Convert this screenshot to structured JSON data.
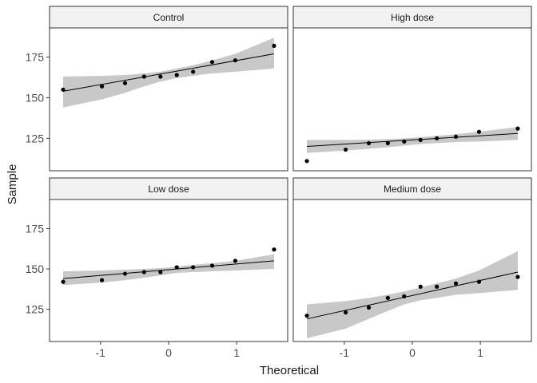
{
  "chart_data": {
    "type": "scatter",
    "subtype": "qq-plot faceted",
    "xlabel": "Theoretical",
    "ylabel": "Sample",
    "xlim": [
      -1.75,
      1.75
    ],
    "ylim": [
      105,
      193
    ],
    "x_ticks": [
      -1,
      0,
      1
    ],
    "y_ticks": [
      125,
      150,
      175
    ],
    "grid": false,
    "colors": {
      "points": "#000000",
      "line": "#000000",
      "band": "#c8c8c8",
      "strip_fill": "#f2f2f2",
      "panel_border": "#333333"
    },
    "panels": [
      {
        "name": "Control",
        "x": [
          -1.55,
          -0.98,
          -0.64,
          -0.36,
          -0.12,
          0.12,
          0.36,
          0.64,
          0.98,
          1.55
        ],
        "y": [
          155,
          157,
          159,
          163,
          163,
          164,
          166,
          172,
          173,
          182
        ],
        "line": [
          [
            -1.55,
            154
          ],
          [
            1.55,
            177
          ]
        ],
        "band_upper": [
          [
            -1.55,
            163
          ],
          [
            -0.98,
            163.5
          ],
          [
            -0.64,
            164
          ],
          [
            -0.36,
            165
          ],
          [
            -0.12,
            166
          ],
          [
            0.12,
            168
          ],
          [
            0.36,
            170
          ],
          [
            0.64,
            173
          ],
          [
            0.98,
            177
          ],
          [
            1.55,
            187
          ]
        ],
        "band_lower": [
          [
            -1.55,
            144
          ],
          [
            -0.98,
            149
          ],
          [
            -0.64,
            153
          ],
          [
            -0.36,
            157
          ],
          [
            -0.12,
            160
          ],
          [
            0.12,
            162
          ],
          [
            0.36,
            163.5
          ],
          [
            0.64,
            165
          ],
          [
            0.98,
            166
          ],
          [
            1.55,
            168
          ]
        ]
      },
      {
        "name": "High dose",
        "x": [
          -1.55,
          -0.98,
          -0.64,
          -0.36,
          -0.12,
          0.12,
          0.36,
          0.64,
          0.98,
          1.55
        ],
        "y": [
          111,
          118,
          122,
          122,
          123,
          124,
          125,
          126,
          129,
          131
        ],
        "line": [
          [
            -1.55,
            120
          ],
          [
            1.55,
            128
          ]
        ],
        "band_upper": [
          [
            -1.55,
            124
          ],
          [
            -0.98,
            124
          ],
          [
            -0.64,
            124.2
          ],
          [
            -0.36,
            124.5
          ],
          [
            -0.12,
            125
          ],
          [
            0.12,
            125.7
          ],
          [
            0.36,
            126.5
          ],
          [
            0.64,
            127.5
          ],
          [
            0.98,
            129
          ],
          [
            1.55,
            132
          ]
        ],
        "band_lower": [
          [
            -1.55,
            116
          ],
          [
            -0.98,
            117.5
          ],
          [
            -0.64,
            118.5
          ],
          [
            -0.36,
            119.5
          ],
          [
            -0.12,
            120.5
          ],
          [
            0.12,
            121.5
          ],
          [
            0.36,
            122
          ],
          [
            0.64,
            122.7
          ],
          [
            0.98,
            123
          ],
          [
            1.55,
            124
          ]
        ]
      },
      {
        "name": "Low dose",
        "x": [
          -1.55,
          -0.98,
          -0.64,
          -0.36,
          -0.12,
          0.12,
          0.36,
          0.64,
          0.98,
          1.55
        ],
        "y": [
          142,
          143,
          147,
          148,
          148,
          151,
          151,
          152,
          155,
          162
        ],
        "line": [
          [
            -1.55,
            144
          ],
          [
            1.55,
            155
          ]
        ],
        "band_upper": [
          [
            -1.55,
            148.5
          ],
          [
            -0.98,
            149
          ],
          [
            -0.64,
            149.5
          ],
          [
            -0.36,
            150
          ],
          [
            -0.12,
            150.5
          ],
          [
            0.12,
            151.5
          ],
          [
            0.36,
            152.5
          ],
          [
            0.64,
            153.5
          ],
          [
            0.98,
            155
          ],
          [
            1.55,
            159
          ]
        ],
        "band_lower": [
          [
            -1.55,
            140
          ],
          [
            -0.98,
            141.5
          ],
          [
            -0.64,
            143
          ],
          [
            -0.36,
            144.5
          ],
          [
            -0.12,
            146
          ],
          [
            0.12,
            147.5
          ],
          [
            0.36,
            148
          ],
          [
            0.64,
            148.5
          ],
          [
            0.98,
            149
          ],
          [
            1.55,
            150
          ]
        ]
      },
      {
        "name": "Medium dose",
        "x": [
          -1.55,
          -0.98,
          -0.64,
          -0.36,
          -0.12,
          0.12,
          0.36,
          0.64,
          0.98,
          1.55
        ],
        "y": [
          121,
          123,
          126,
          132,
          133,
          139,
          139,
          141,
          142,
          145
        ],
        "line": [
          [
            -1.55,
            119
          ],
          [
            1.55,
            148
          ]
        ],
        "band_upper": [
          [
            -1.55,
            128
          ],
          [
            -0.98,
            130
          ],
          [
            -0.64,
            132
          ],
          [
            -0.36,
            134
          ],
          [
            -0.12,
            136
          ],
          [
            0.12,
            138.5
          ],
          [
            0.36,
            141
          ],
          [
            0.64,
            144
          ],
          [
            0.98,
            149
          ],
          [
            1.55,
            161
          ]
        ],
        "band_lower": [
          [
            -1.55,
            107
          ],
          [
            -0.98,
            113
          ],
          [
            -0.64,
            119
          ],
          [
            -0.36,
            124
          ],
          [
            -0.12,
            128
          ],
          [
            0.12,
            130.5
          ],
          [
            0.36,
            132
          ],
          [
            0.64,
            134
          ],
          [
            0.98,
            135
          ],
          [
            1.55,
            137
          ]
        ]
      }
    ]
  }
}
